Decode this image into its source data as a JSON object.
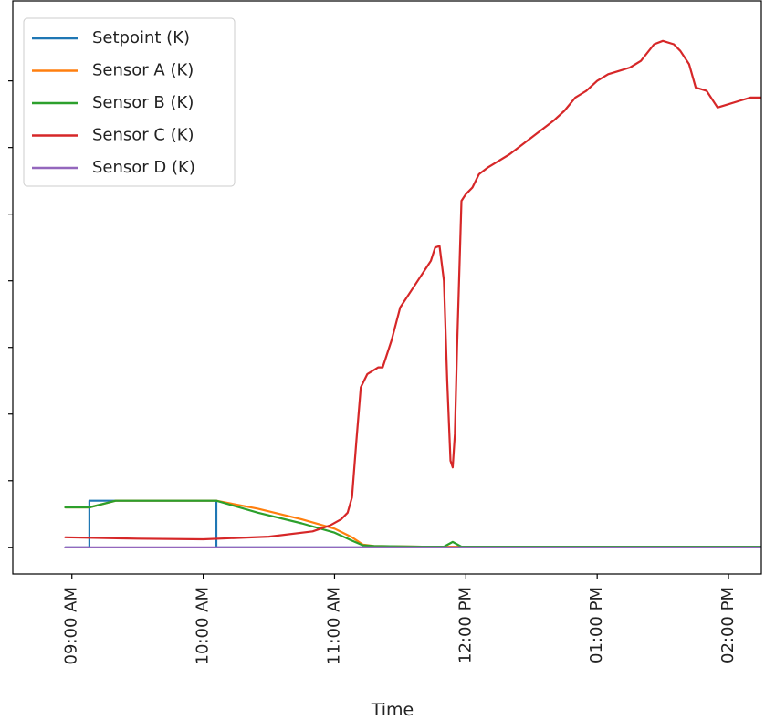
{
  "chart_data": {
    "type": "line",
    "title": "",
    "xlabel": "Time",
    "ylabel": "",
    "x_unit": "minutes after 09:00 AM",
    "xlim": [
      -27,
      315
    ],
    "ylim": [
      -0.04,
      0.82
    ],
    "x_ticks": [
      {
        "value": 0,
        "label": "09:00 AM"
      },
      {
        "value": 60,
        "label": "10:00 AM"
      },
      {
        "value": 120,
        "label": "11:00 AM"
      },
      {
        "value": 180,
        "label": "12:00 PM"
      },
      {
        "value": 240,
        "label": "01:00 PM"
      },
      {
        "value": 300,
        "label": "02:00 PM"
      }
    ],
    "y_tick_values": [
      0,
      0.1,
      0.2,
      0.3,
      0.4,
      0.5,
      0.6,
      0.7
    ],
    "grid": false,
    "legend_position": "top-left",
    "series": [
      {
        "name": "Setpoint (K)",
        "color": "#1f77b4",
        "x": [
          -3,
          8,
          8,
          45,
          45,
          66,
          66,
          334
        ],
        "y": [
          0,
          0,
          0.07,
          0.07,
          0.07,
          0.07,
          0,
          0
        ]
      },
      {
        "name": "Sensor A (K)",
        "color": "#ff7f0e",
        "x": [
          -3,
          8,
          20,
          45,
          66,
          85,
          105,
          120,
          128,
          133,
          138,
          160,
          200,
          334
        ],
        "y": [
          0.06,
          0.06,
          0.07,
          0.07,
          0.07,
          0.058,
          0.042,
          0.028,
          0.015,
          0.004,
          0.002,
          0.001,
          0.001,
          0.001
        ]
      },
      {
        "name": "Sensor B (K)",
        "color": "#2ca02c",
        "x": [
          -3,
          8,
          20,
          45,
          66,
          85,
          105,
          120,
          128,
          133,
          138,
          160,
          170,
          174,
          178,
          200,
          334
        ],
        "y": [
          0.06,
          0.06,
          0.07,
          0.07,
          0.07,
          0.052,
          0.036,
          0.022,
          0.01,
          0.003,
          0.002,
          0.001,
          0.001,
          0.008,
          0.001,
          0.001,
          0.001
        ]
      },
      {
        "name": "Sensor C (K)",
        "color": "#d62728",
        "x": [
          -3,
          30,
          60,
          90,
          110,
          118,
          123,
          126,
          128,
          130,
          132,
          135,
          140,
          142,
          146,
          150,
          154,
          158,
          162,
          164,
          166,
          168,
          170,
          171.5,
          173,
          174,
          175,
          176,
          178,
          180,
          183,
          186,
          190,
          195,
          200,
          210,
          220,
          225,
          230,
          235,
          240,
          245,
          250,
          255,
          260,
          266,
          270,
          275,
          278,
          282,
          285,
          290,
          295,
          300,
          305,
          310,
          315,
          320,
          325,
          328,
          330,
          334
        ],
        "y": [
          0.015,
          0.013,
          0.012,
          0.016,
          0.024,
          0.033,
          0.042,
          0.052,
          0.075,
          0.16,
          0.24,
          0.26,
          0.27,
          0.27,
          0.31,
          0.36,
          0.38,
          0.4,
          0.42,
          0.43,
          0.45,
          0.452,
          0.4,
          0.25,
          0.13,
          0.12,
          0.17,
          0.3,
          0.52,
          0.53,
          0.54,
          0.56,
          0.57,
          0.58,
          0.59,
          0.615,
          0.64,
          0.655,
          0.675,
          0.685,
          0.7,
          0.71,
          0.715,
          0.72,
          0.73,
          0.755,
          0.76,
          0.755,
          0.745,
          0.725,
          0.69,
          0.685,
          0.66,
          0.665,
          0.67,
          0.675,
          0.675,
          0.665,
          0.662,
          0.67,
          0.68,
          0.685
        ]
      },
      {
        "name": "Sensor D (K)",
        "color": "#9467bd",
        "x": [
          -3,
          334
        ],
        "y": [
          0,
          0
        ]
      }
    ]
  }
}
